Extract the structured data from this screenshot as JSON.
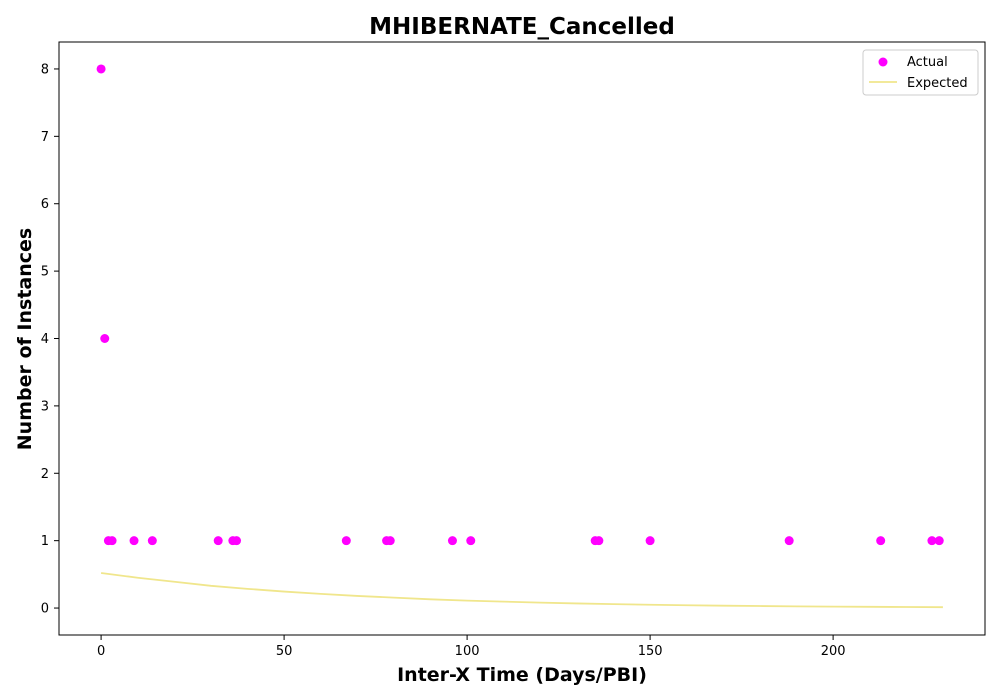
{
  "chart_data": {
    "type": "scatter",
    "title": "MHIBERNATE_Cancelled",
    "xlabel": "Inter-X Time (Days/PBI)",
    "ylabel": "Number of Instances",
    "xlim": [
      -11.5,
      241.5
    ],
    "ylim": [
      -0.4,
      8.4
    ],
    "xticks": [
      0,
      50,
      100,
      150,
      200
    ],
    "yticks": [
      0,
      1,
      2,
      3,
      4,
      5,
      6,
      7,
      8
    ],
    "grid": false,
    "legend_position": "top-right",
    "colors": {
      "actual": "#ff00ff",
      "expected": "#f0e68c"
    },
    "series": [
      {
        "name": "Actual",
        "kind": "scatter",
        "points": [
          [
            0,
            8
          ],
          [
            1,
            4
          ],
          [
            2,
            1
          ],
          [
            3,
            1
          ],
          [
            9,
            1
          ],
          [
            14,
            1
          ],
          [
            32,
            1
          ],
          [
            36,
            1
          ],
          [
            37,
            1
          ],
          [
            67,
            1
          ],
          [
            78,
            1
          ],
          [
            79,
            1
          ],
          [
            96,
            1
          ],
          [
            101,
            1
          ],
          [
            135,
            1
          ],
          [
            136,
            1
          ],
          [
            150,
            1
          ],
          [
            188,
            1
          ],
          [
            213,
            1
          ],
          [
            227,
            1
          ],
          [
            229,
            1
          ]
        ]
      },
      {
        "name": "Expected",
        "kind": "line",
        "points": [
          [
            0,
            0.52
          ],
          [
            10,
            0.45
          ],
          [
            20,
            0.39
          ],
          [
            30,
            0.33
          ],
          [
            40,
            0.285
          ],
          [
            50,
            0.245
          ],
          [
            60,
            0.21
          ],
          [
            70,
            0.18
          ],
          [
            80,
            0.155
          ],
          [
            90,
            0.13
          ],
          [
            100,
            0.11
          ],
          [
            110,
            0.095
          ],
          [
            120,
            0.08
          ],
          [
            130,
            0.068
          ],
          [
            140,
            0.058
          ],
          [
            150,
            0.049
          ],
          [
            160,
            0.041
          ],
          [
            170,
            0.035
          ],
          [
            180,
            0.03
          ],
          [
            190,
            0.025
          ],
          [
            200,
            0.021
          ],
          [
            210,
            0.018
          ],
          [
            220,
            0.015
          ],
          [
            230,
            0.013
          ]
        ]
      }
    ]
  }
}
